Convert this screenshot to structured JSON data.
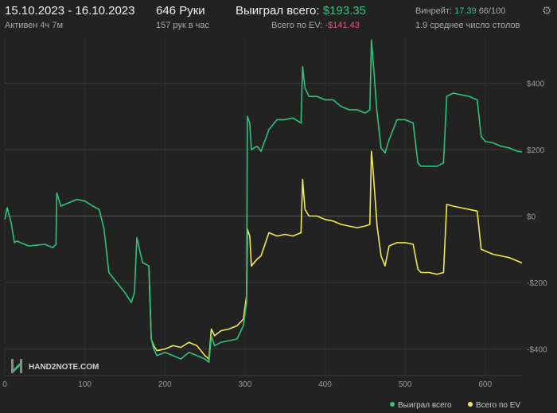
{
  "header": {
    "date_range": "15.10.2023 - 16.10.2023",
    "active_time": "Активен 4ч 7м",
    "hands": "646 Руки",
    "hands_per_hour": "157 рук в час",
    "won_label": "Выиграл всего:",
    "won_value": "$193.35",
    "ev_label": "Всего по EV:",
    "ev_value": "-$141.43",
    "winrate_label": "Винрейт:",
    "winrate_value": "17.39",
    "winrate_hands": "66/100",
    "avg_tables": "1.9 среднее число столов"
  },
  "watermark": {
    "text": "HAND2NOTE.COM"
  },
  "legend": {
    "won": "Выиграл всего",
    "ev": "Всего по EV"
  },
  "colors": {
    "won": "#2ec27e",
    "ev": "#f2ea4d",
    "negative": "#e8567a"
  },
  "chart_data": {
    "type": "line",
    "xlim": [
      0,
      646
    ],
    "ylim": [
      -480,
      540
    ],
    "x_ticks": [
      "0",
      "100",
      "200",
      "300",
      "400",
      "500",
      "600"
    ],
    "y_ticks": [
      "$400",
      "$200",
      "$0",
      "-$200",
      "-$400"
    ],
    "y_tick_values": [
      400,
      200,
      0,
      -200,
      -400
    ],
    "x_tick_values": [
      0,
      100,
      200,
      300,
      400,
      500,
      600
    ],
    "grid": true,
    "legend_position": "bottom-right",
    "series": [
      {
        "name": "Выиграл всего",
        "x": [
          0,
          3,
          8,
          12,
          15,
          30,
          50,
          60,
          64,
          65,
          70,
          80,
          90,
          100,
          110,
          118,
          124,
          130,
          140,
          150,
          158,
          162,
          165,
          172,
          180,
          183,
          186,
          190,
          200,
          210,
          220,
          230,
          240,
          250,
          255,
          258,
          262,
          270,
          280,
          290,
          298,
          302,
          303,
          306,
          308,
          315,
          320,
          330,
          340,
          350,
          360,
          370,
          372,
          375,
          380,
          390,
          400,
          410,
          420,
          430,
          440,
          450,
          456,
          458,
          460,
          465,
          470,
          475,
          480,
          490,
          500,
          510,
          516,
          520,
          530,
          540,
          548,
          552,
          560,
          570,
          580,
          590,
          595,
          600,
          610,
          620,
          630,
          640,
          646
        ],
        "y": [
          -10,
          25,
          -20,
          -80,
          -75,
          -90,
          -85,
          -95,
          -85,
          70,
          30,
          40,
          50,
          45,
          30,
          20,
          -40,
          -170,
          -200,
          -230,
          -260,
          -230,
          -65,
          -140,
          -150,
          -370,
          -400,
          -420,
          -410,
          -420,
          -430,
          -410,
          -420,
          -430,
          -440,
          -360,
          -390,
          -380,
          -375,
          -370,
          -330,
          -260,
          300,
          280,
          200,
          210,
          195,
          260,
          290,
          290,
          295,
          280,
          450,
          385,
          360,
          360,
          350,
          350,
          330,
          320,
          320,
          310,
          320,
          530,
          470,
          310,
          205,
          190,
          230,
          290,
          290,
          280,
          160,
          150,
          150,
          150,
          160,
          360,
          370,
          365,
          360,
          350,
          240,
          225,
          220,
          210,
          205,
          195,
          193
        ]
      },
      {
        "name": "Всего по EV",
        "x": [
          180,
          183,
          186,
          190,
          200,
          210,
          220,
          230,
          240,
          250,
          255,
          258,
          262,
          270,
          280,
          290,
          298,
          302,
          303,
          306,
          308,
          315,
          320,
          330,
          340,
          350,
          360,
          370,
          372,
          375,
          380,
          390,
          400,
          410,
          420,
          430,
          440,
          450,
          456,
          458,
          460,
          465,
          470,
          475,
          480,
          490,
          500,
          510,
          516,
          520,
          530,
          540,
          548,
          552,
          560,
          570,
          580,
          590,
          595,
          600,
          610,
          620,
          630,
          640,
          646
        ],
        "y": [
          -150,
          -370,
          -390,
          -405,
          -400,
          -390,
          -395,
          -380,
          -390,
          -420,
          -430,
          -340,
          -360,
          -345,
          -340,
          -330,
          -310,
          -240,
          -40,
          -60,
          -150,
          -130,
          -120,
          -50,
          -60,
          -55,
          -60,
          -50,
          110,
          20,
          0,
          0,
          -10,
          -15,
          -25,
          -30,
          -35,
          -30,
          -25,
          195,
          140,
          -30,
          -120,
          -150,
          -90,
          -80,
          -80,
          -85,
          -160,
          -170,
          -170,
          -175,
          -170,
          35,
          30,
          25,
          20,
          15,
          -100,
          -105,
          -115,
          -120,
          -125,
          -135,
          -141
        ]
      }
    ]
  }
}
